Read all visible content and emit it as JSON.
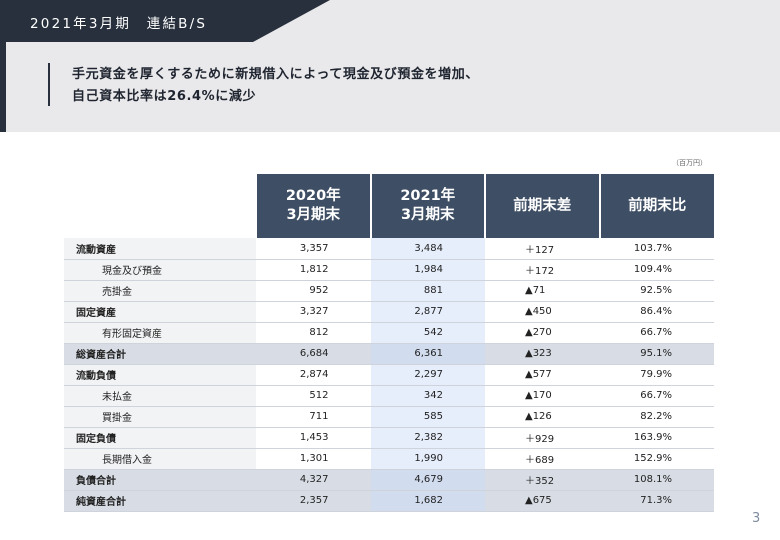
{
  "header": {
    "title": "2021年3月期　連結B/S",
    "message_lines": [
      "手元資金を厚くするために新規借入によって現金及び預金を増加、",
      "自己資本比率は26.4%に減少"
    ]
  },
  "unit_note": "（百万円）",
  "table": {
    "columns": [
      [
        "2020年",
        "3月期末"
      ],
      [
        "2021年",
        "3月期末"
      ],
      [
        "前期末差"
      ],
      [
        "前期末比"
      ]
    ],
    "rows": [
      {
        "label": "流動資産",
        "indent": false,
        "total": false,
        "v2020": "3,357",
        "v2021": "3,484",
        "diff": "＋127",
        "ratio": "103.7%"
      },
      {
        "label": "現金及び預金",
        "indent": true,
        "total": false,
        "v2020": "1,812",
        "v2021": "1,984",
        "diff": "＋172",
        "ratio": "109.4%"
      },
      {
        "label": "売掛金",
        "indent": true,
        "total": false,
        "v2020": "952",
        "v2021": "881",
        "diff": "▲71",
        "ratio": "92.5%"
      },
      {
        "label": "固定資産",
        "indent": false,
        "total": false,
        "v2020": "3,327",
        "v2021": "2,877",
        "diff": "▲450",
        "ratio": "86.4%"
      },
      {
        "label": "有形固定資産",
        "indent": true,
        "total": false,
        "v2020": "812",
        "v2021": "542",
        "diff": "▲270",
        "ratio": "66.7%"
      },
      {
        "label": "総資産合計",
        "indent": false,
        "total": true,
        "v2020": "6,684",
        "v2021": "6,361",
        "diff": "▲323",
        "ratio": "95.1%"
      },
      {
        "label": "流動負債",
        "indent": false,
        "total": false,
        "v2020": "2,874",
        "v2021": "2,297",
        "diff": "▲577",
        "ratio": "79.9%"
      },
      {
        "label": "未払金",
        "indent": true,
        "total": false,
        "v2020": "512",
        "v2021": "342",
        "diff": "▲170",
        "ratio": "66.7%"
      },
      {
        "label": "買掛金",
        "indent": true,
        "total": false,
        "v2020": "711",
        "v2021": "585",
        "diff": "▲126",
        "ratio": "82.2%"
      },
      {
        "label": "固定負債",
        "indent": false,
        "total": false,
        "v2020": "1,453",
        "v2021": "2,382",
        "diff": "＋929",
        "ratio": "163.9%"
      },
      {
        "label": "長期借入金",
        "indent": true,
        "total": false,
        "v2020": "1,301",
        "v2021": "1,990",
        "diff": "＋689",
        "ratio": "152.9%"
      },
      {
        "label": "負債合計",
        "indent": false,
        "total": true,
        "v2020": "4,327",
        "v2021": "4,679",
        "diff": "＋352",
        "ratio": "108.1%"
      },
      {
        "label": "純資産合計",
        "indent": false,
        "total": true,
        "v2020": "2,357",
        "v2021": "1,682",
        "diff": "▲675",
        "ratio": "71.3%"
      }
    ]
  },
  "page_number": "3",
  "colors": {
    "title_bg": "#28303d",
    "header_band": "#e9e8ea",
    "column_header": "#3e4e64",
    "highlight_column": "#e6eefb",
    "total_row": "#d8dde5"
  }
}
